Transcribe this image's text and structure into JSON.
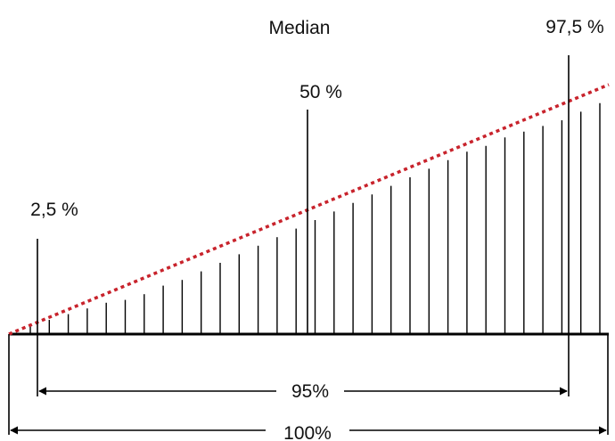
{
  "labels": {
    "median": "Median",
    "p50": "50 %",
    "p2_5": "2,5 %",
    "p97_5": "97,5 %",
    "span95": "95%",
    "span100": "100%"
  },
  "colors": {
    "line": "#000000",
    "trend": "#c8232c",
    "background": "#ffffff"
  },
  "chart_data": {
    "type": "bar",
    "values": [
      3,
      5,
      7,
      9,
      11,
      12,
      14,
      17,
      19,
      22,
      25,
      28,
      31,
      34,
      37,
      40,
      43,
      46,
      49,
      52,
      55,
      58,
      61,
      64,
      66,
      69,
      71,
      73,
      75,
      78,
      81,
      84,
      87
    ],
    "percentiles": [
      {
        "label": "2,5 %",
        "percent": 2.5
      },
      {
        "label": "50 %",
        "percent": 50
      },
      {
        "label": "97,5 %",
        "percent": 97.5
      }
    ],
    "spans": [
      {
        "label": "95%",
        "from": 2.5,
        "to": 97.5
      },
      {
        "label": "100%",
        "from": 0,
        "to": 100
      }
    ]
  }
}
